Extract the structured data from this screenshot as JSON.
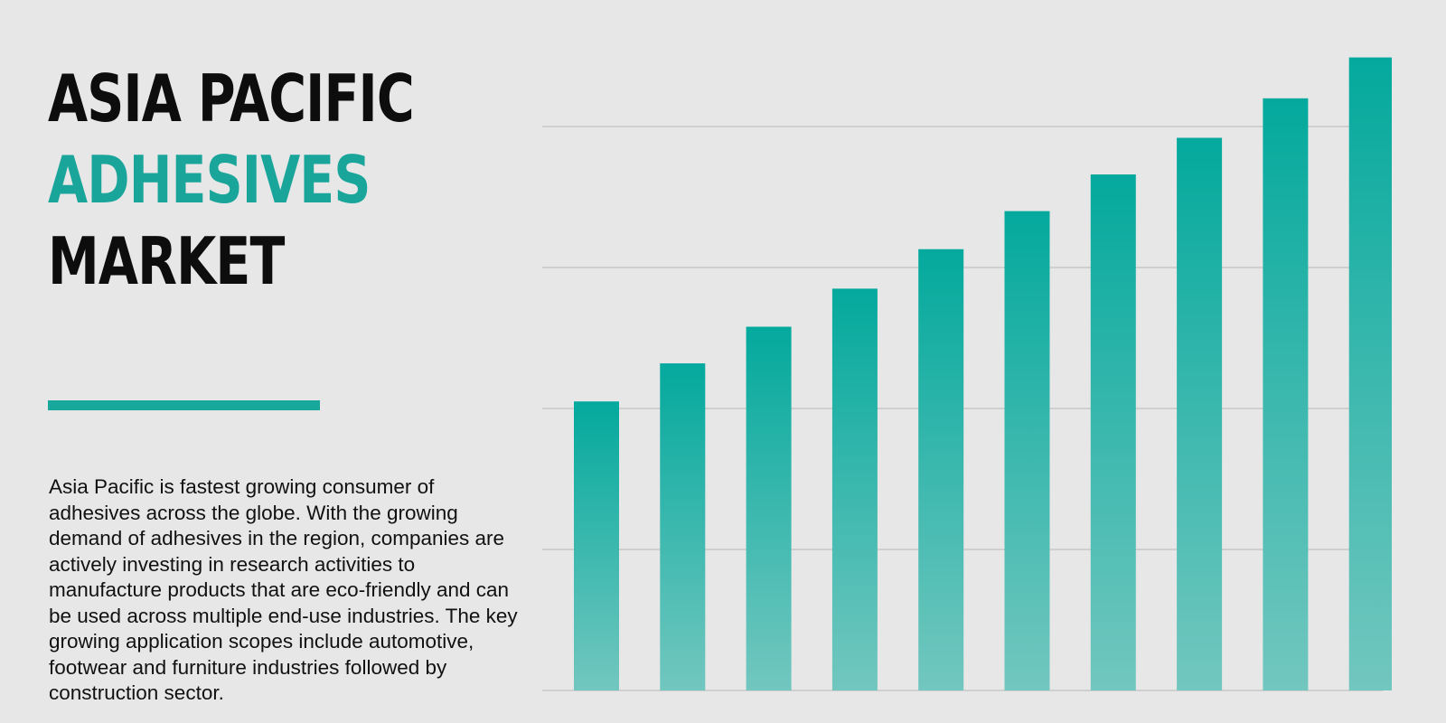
{
  "title": {
    "line1": "ASIA PACIFIC",
    "line2": "ADHESIVES",
    "line3": "MARKET"
  },
  "description": "Asia Pacific is fastest growing consumer of adhesives across the globe. With the growing demand of adhesives in the region, companies are actively investing in research activities to manufacture products that are eco-friendly and can be used across multiple end-use industries. The key growing application scopes include automotive, footwear and furniture industries followed by construction sector.",
  "colors": {
    "background": "#e7e7e7",
    "accent": "#17a79b",
    "bar_top": "#04a99d",
    "bar_bottom": "#72c7bf",
    "gridline": "#cfcfcf"
  },
  "chart_data": {
    "type": "bar",
    "categories": [
      "",
      "",
      "",
      "",
      "",
      "",
      "",
      "",
      "",
      ""
    ],
    "values": [
      2.05,
      2.32,
      2.58,
      2.85,
      3.13,
      3.4,
      3.66,
      3.92,
      4.2,
      4.49
    ],
    "xlabel": "",
    "ylabel": "",
    "ylim": [
      0,
      4.9
    ],
    "gridlines": [
      1,
      2,
      3,
      4
    ],
    "grid": true,
    "legend": "none"
  }
}
